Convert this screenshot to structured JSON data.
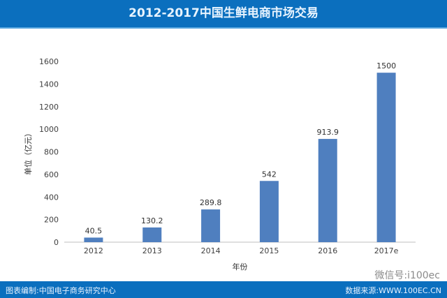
{
  "header": {
    "title": "2012-2017中国生鲜电商市场交易"
  },
  "footer": {
    "left": "图表编制:中国电子商务研究中心",
    "right": "数据来源:WWW.100EC.CN",
    "wechat": "微信号:i100ec"
  },
  "colors": {
    "bar": "#4f7fbf",
    "header": "#0b6fbe"
  },
  "chart_data": {
    "type": "bar",
    "title": "2012-2017中国生鲜电商市场交易",
    "xlabel": "年份",
    "ylabel": "单位（亿元）",
    "categories": [
      "2012",
      "2013",
      "2014",
      "2015",
      "2016",
      "2017e"
    ],
    "values": [
      40.5,
      130.2,
      289.8,
      542,
      913.9,
      1500
    ],
    "data_labels": [
      "40.5",
      "130.2",
      "289.8",
      "542",
      "913.9",
      "1500"
    ],
    "ylim": [
      0,
      1600
    ],
    "yticks": [
      0,
      200,
      400,
      600,
      800,
      1000,
      1200,
      1400,
      1600
    ],
    "grid": false
  }
}
